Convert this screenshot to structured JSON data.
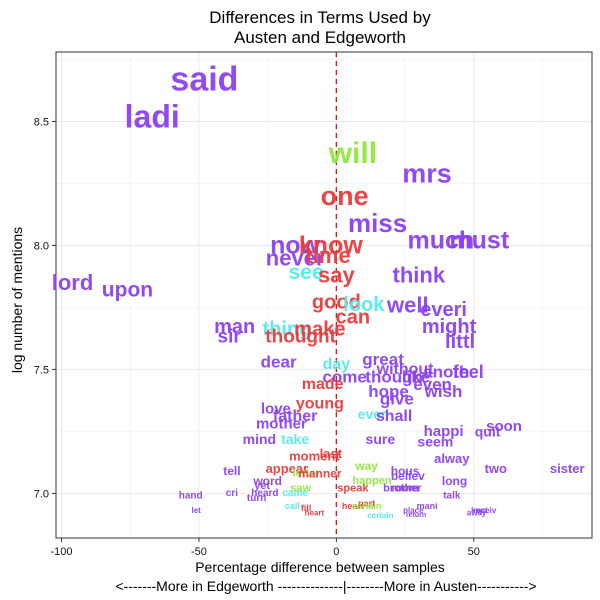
{
  "chart_data": {
    "type": "scatter",
    "title": "Differences in Terms Used by",
    "title_line2": "Austen and Edgeworth",
    "xlabel": "Percentage difference between samples",
    "xlabel_line2": "<-------More in Edgeworth --------------|--------More in Austen----------->",
    "ylabel": "log number of mentions",
    "xlim": [
      -102,
      93
    ],
    "ylim": [
      6.82,
      8.78
    ],
    "xticks": [
      -100,
      -50,
      0,
      50
    ],
    "yticks": [
      7.0,
      7.5,
      8.0,
      8.5
    ],
    "xtick_labels": [
      "-100",
      "-50",
      "0",
      "50"
    ],
    "ytick_labels": [
      "7.0",
      "7.5",
      "8.0",
      "8.5"
    ],
    "reference_line_x": 0,
    "grid": true,
    "colors": {
      "purple": "#8b3ff0",
      "red": "#ea3b3b",
      "green": "#8fe83c",
      "cyan": "#55eaea",
      "refline": "#d62020"
    },
    "points": [
      {
        "word": "said",
        "x": -48,
        "y": 8.67,
        "size": 34,
        "color": "purple"
      },
      {
        "word": "ladi",
        "x": -67,
        "y": 8.52,
        "size": 32,
        "color": "purple"
      },
      {
        "word": "will",
        "x": 6,
        "y": 8.37,
        "size": 30,
        "color": "green"
      },
      {
        "word": "one",
        "x": 3,
        "y": 8.2,
        "size": 27,
        "color": "red"
      },
      {
        "word": "mrs",
        "x": 33,
        "y": 8.29,
        "size": 27,
        "color": "purple"
      },
      {
        "word": "miss",
        "x": 15,
        "y": 8.09,
        "size": 26,
        "color": "purple"
      },
      {
        "word": "much",
        "x": 38,
        "y": 8.02,
        "size": 25,
        "color": "purple"
      },
      {
        "word": "must",
        "x": 52,
        "y": 8.02,
        "size": 25,
        "color": "purple"
      },
      {
        "word": "now",
        "x": -15,
        "y": 8.0,
        "size": 25,
        "color": "purple"
      },
      {
        "word": "know",
        "x": -2,
        "y": 8.0,
        "size": 25,
        "color": "red"
      },
      {
        "word": "never",
        "x": -15,
        "y": 7.95,
        "size": 22,
        "color": "purple"
      },
      {
        "word": "time",
        "x": -3,
        "y": 7.96,
        "size": 22,
        "color": "red"
      },
      {
        "word": "see",
        "x": -11,
        "y": 7.89,
        "size": 21,
        "color": "cyan"
      },
      {
        "word": "say",
        "x": 0,
        "y": 7.88,
        "size": 22,
        "color": "red"
      },
      {
        "word": "think",
        "x": 30,
        "y": 7.88,
        "size": 22,
        "color": "purple"
      },
      {
        "word": "lord",
        "x": -96,
        "y": 7.85,
        "size": 22,
        "color": "purple"
      },
      {
        "word": "upon",
        "x": -76,
        "y": 7.82,
        "size": 21,
        "color": "purple"
      },
      {
        "word": "good",
        "x": 0,
        "y": 7.77,
        "size": 20,
        "color": "red"
      },
      {
        "word": "well",
        "x": 26,
        "y": 7.76,
        "size": 22,
        "color": "purple"
      },
      {
        "word": "look",
        "x": 10,
        "y": 7.76,
        "size": 20,
        "color": "cyan"
      },
      {
        "word": "can",
        "x": 6,
        "y": 7.71,
        "size": 20,
        "color": "red"
      },
      {
        "word": "everi",
        "x": 39,
        "y": 7.74,
        "size": 20,
        "color": "purple"
      },
      {
        "word": "might",
        "x": 41,
        "y": 7.67,
        "size": 20,
        "color": "purple"
      },
      {
        "word": "man",
        "x": -37,
        "y": 7.67,
        "size": 20,
        "color": "purple"
      },
      {
        "word": "sir",
        "x": -39,
        "y": 7.63,
        "size": 19,
        "color": "purple"
      },
      {
        "word": "thing",
        "x": -18,
        "y": 7.66,
        "size": 20,
        "color": "cyan"
      },
      {
        "word": "make",
        "x": -6,
        "y": 7.66,
        "size": 20,
        "color": "red"
      },
      {
        "word": "thought",
        "x": -13,
        "y": 7.63,
        "size": 19,
        "color": "red"
      },
      {
        "word": "littl",
        "x": 45,
        "y": 7.61,
        "size": 20,
        "color": "purple"
      },
      {
        "word": "dear",
        "x": -21,
        "y": 7.53,
        "size": 17,
        "color": "purple"
      },
      {
        "word": "great",
        "x": 17,
        "y": 7.54,
        "size": 17,
        "color": "purple"
      },
      {
        "word": "day",
        "x": 0,
        "y": 7.52,
        "size": 16,
        "color": "cyan"
      },
      {
        "word": "without",
        "x": 25,
        "y": 7.5,
        "size": 16,
        "color": "purple"
      },
      {
        "word": "feel",
        "x": 48,
        "y": 7.49,
        "size": 18,
        "color": "purple"
      },
      {
        "word": "anoth",
        "x": 40,
        "y": 7.49,
        "size": 17,
        "color": "purple"
      },
      {
        "word": "like",
        "x": 29,
        "y": 7.47,
        "size": 17,
        "color": "purple"
      },
      {
        "word": "though",
        "x": 21,
        "y": 7.47,
        "size": 17,
        "color": "purple"
      },
      {
        "word": "come",
        "x": 3,
        "y": 7.47,
        "size": 17,
        "color": "purple"
      },
      {
        "word": "made",
        "x": -5,
        "y": 7.44,
        "size": 16,
        "color": "red"
      },
      {
        "word": "even",
        "x": 35,
        "y": 7.44,
        "size": 17,
        "color": "purple"
      },
      {
        "word": "hope",
        "x": 19,
        "y": 7.41,
        "size": 17,
        "color": "purple"
      },
      {
        "word": "wish",
        "x": 39,
        "y": 7.41,
        "size": 17,
        "color": "purple"
      },
      {
        "word": "give",
        "x": 22,
        "y": 7.38,
        "size": 17,
        "color": "purple"
      },
      {
        "word": "young",
        "x": -6,
        "y": 7.36,
        "size": 16,
        "color": "red"
      },
      {
        "word": "love",
        "x": -22,
        "y": 7.34,
        "size": 15,
        "color": "purple"
      },
      {
        "word": "ever",
        "x": 13,
        "y": 7.32,
        "size": 14,
        "color": "cyan"
      },
      {
        "word": "shall",
        "x": 21,
        "y": 7.31,
        "size": 16,
        "color": "purple"
      },
      {
        "word": "father",
        "x": -15,
        "y": 7.31,
        "size": 16,
        "color": "purple"
      },
      {
        "word": "mother",
        "x": -20,
        "y": 7.28,
        "size": 15,
        "color": "purple"
      },
      {
        "word": "soon",
        "x": 61,
        "y": 7.27,
        "size": 15,
        "color": "purple"
      },
      {
        "word": "quit",
        "x": 55,
        "y": 7.25,
        "size": 14,
        "color": "purple"
      },
      {
        "word": "happi",
        "x": 39,
        "y": 7.25,
        "size": 15,
        "color": "purple"
      },
      {
        "word": "mind",
        "x": -28,
        "y": 7.22,
        "size": 14,
        "color": "purple"
      },
      {
        "word": "take",
        "x": -15,
        "y": 7.22,
        "size": 14,
        "color": "cyan"
      },
      {
        "word": "sure",
        "x": 16,
        "y": 7.22,
        "size": 14,
        "color": "purple"
      },
      {
        "word": "seem",
        "x": 36,
        "y": 7.21,
        "size": 14,
        "color": "purple"
      },
      {
        "word": "last",
        "x": -2,
        "y": 7.16,
        "size": 13,
        "color": "red"
      },
      {
        "word": "moment",
        "x": -8,
        "y": 7.15,
        "size": 13,
        "color": "red"
      },
      {
        "word": "alway",
        "x": 42,
        "y": 7.14,
        "size": 13,
        "color": "purple"
      },
      {
        "word": "tell",
        "x": -38,
        "y": 7.09,
        "size": 12,
        "color": "purple"
      },
      {
        "word": "appear",
        "x": -18,
        "y": 7.1,
        "size": 13,
        "color": "red"
      },
      {
        "word": "way",
        "x": 11,
        "y": 7.11,
        "size": 12,
        "color": "green"
      },
      {
        "word": "hous",
        "x": 25,
        "y": 7.09,
        "size": 12,
        "color": "purple"
      },
      {
        "word": "two",
        "x": 58,
        "y": 7.1,
        "size": 13,
        "color": "purple"
      },
      {
        "word": "sister",
        "x": 84,
        "y": 7.1,
        "size": 13,
        "color": "purple"
      },
      {
        "word": "letter",
        "x": -11,
        "y": 7.08,
        "size": 11,
        "color": "green"
      },
      {
        "word": "manner",
        "x": -6,
        "y": 7.08,
        "size": 12,
        "color": "red"
      },
      {
        "word": "believ",
        "x": 26,
        "y": 7.07,
        "size": 12,
        "color": "purple"
      },
      {
        "word": "word",
        "x": -25,
        "y": 7.05,
        "size": 12,
        "color": "purple"
      },
      {
        "word": "happen",
        "x": 13,
        "y": 7.05,
        "size": 11,
        "color": "green"
      },
      {
        "word": "long",
        "x": 43,
        "y": 7.05,
        "size": 12,
        "color": "purple"
      },
      {
        "word": "yet",
        "x": -27,
        "y": 7.03,
        "size": 11,
        "color": "purple"
      },
      {
        "word": "saw",
        "x": -13,
        "y": 7.02,
        "size": 11,
        "color": "green"
      },
      {
        "word": "speak",
        "x": 6,
        "y": 7.02,
        "size": 11,
        "color": "red"
      },
      {
        "word": "brother",
        "x": 24,
        "y": 7.02,
        "size": 11,
        "color": "purple"
      },
      {
        "word": "room",
        "x": 25,
        "y": 7.02,
        "size": 11,
        "color": "purple"
      },
      {
        "word": "hand",
        "x": -53,
        "y": 6.99,
        "size": 10,
        "color": "purple"
      },
      {
        "word": "cri",
        "x": -38,
        "y": 7.0,
        "size": 10,
        "color": "purple"
      },
      {
        "word": "heard",
        "x": -26,
        "y": 7.0,
        "size": 10,
        "color": "purple"
      },
      {
        "word": "came",
        "x": -15,
        "y": 7.0,
        "size": 10,
        "color": "cyan"
      },
      {
        "word": "talk",
        "x": 42,
        "y": 6.99,
        "size": 10,
        "color": "purple"
      },
      {
        "word": "turn",
        "x": -29,
        "y": 6.98,
        "size": 10,
        "color": "purple"
      },
      {
        "word": "call",
        "x": -16,
        "y": 6.95,
        "size": 9,
        "color": "cyan"
      },
      {
        "word": "heart",
        "x": 6,
        "y": 6.95,
        "size": 9,
        "color": "red"
      },
      {
        "word": "part",
        "x": 11,
        "y": 6.96,
        "size": 9,
        "color": "red"
      },
      {
        "word": "certain",
        "x": 11,
        "y": 6.95,
        "size": 9,
        "color": "green"
      },
      {
        "word": "mani",
        "x": 33,
        "y": 6.95,
        "size": 9,
        "color": "purple"
      },
      {
        "word": "fill",
        "x": -11,
        "y": 6.94,
        "size": 9,
        "color": "red"
      },
      {
        "word": "place",
        "x": 28,
        "y": 6.93,
        "size": 8,
        "color": "purple"
      },
      {
        "word": "kept",
        "x": 52,
        "y": 6.93,
        "size": 8,
        "color": "purple"
      },
      {
        "word": "receiv",
        "x": 54,
        "y": 6.93,
        "size": 8,
        "color": "purple"
      },
      {
        "word": "let",
        "x": -51,
        "y": 6.93,
        "size": 8,
        "color": "purple"
      },
      {
        "word": "away",
        "x": 51,
        "y": 6.92,
        "size": 8,
        "color": "purple"
      },
      {
        "word": "heart",
        "x": -8,
        "y": 6.92,
        "size": 8,
        "color": "red"
      },
      {
        "word": "certain",
        "x": 16,
        "y": 6.91,
        "size": 8,
        "color": "cyan"
      },
      {
        "word": "return",
        "x": 29,
        "y": 6.91,
        "size": 7,
        "color": "purple"
      }
    ]
  }
}
